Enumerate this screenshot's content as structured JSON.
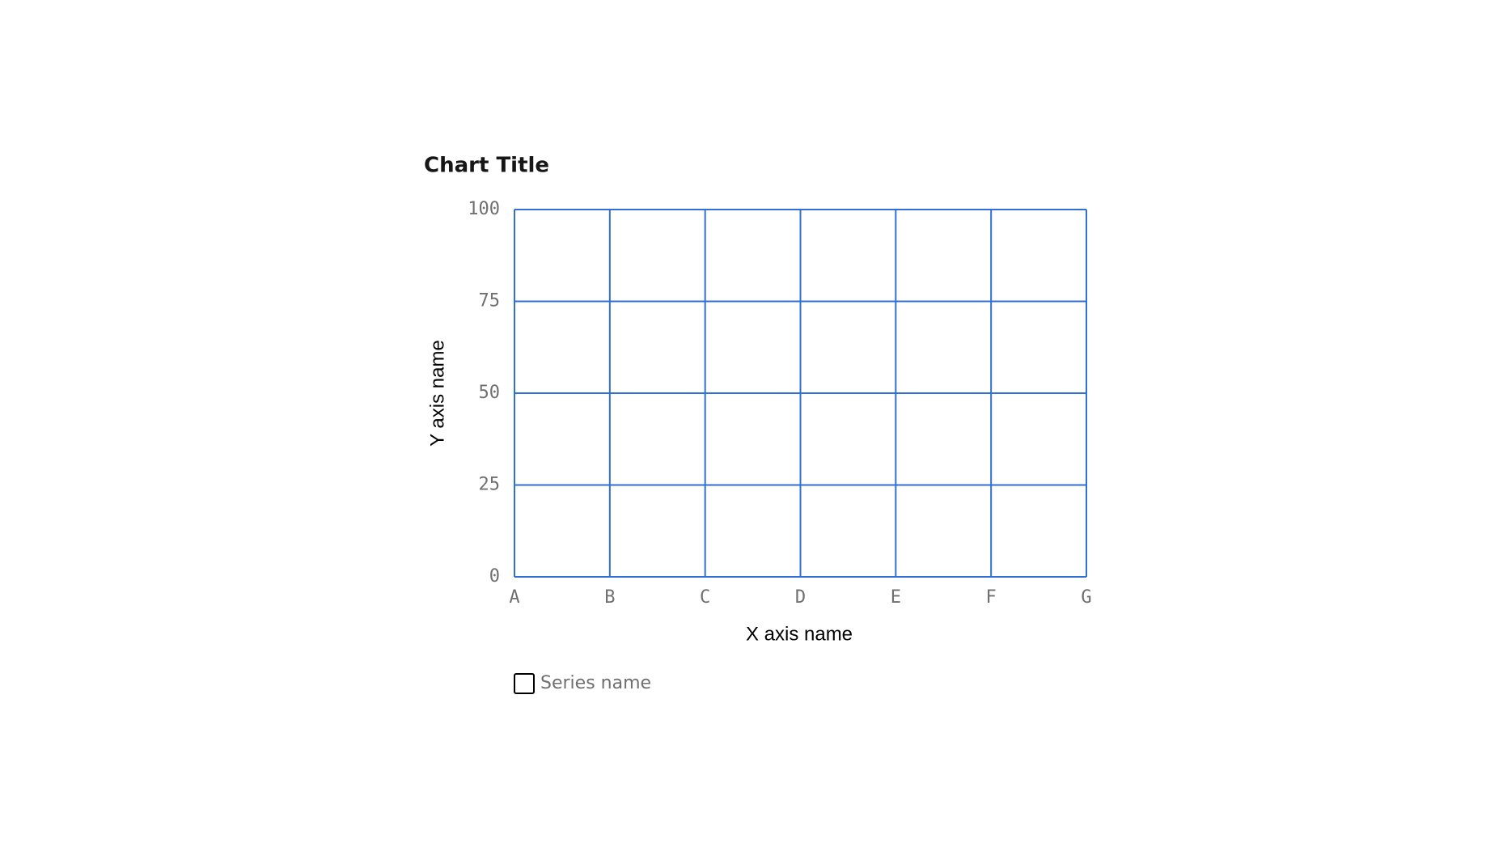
{
  "chart_data": {
    "type": "line",
    "title": "Chart Title",
    "x_label": "X axis name",
    "y_label": "Y axis name",
    "categories": [
      "A",
      "B",
      "C",
      "D",
      "E",
      "F",
      "G"
    ],
    "series": [
      {
        "name": "Series name",
        "color": "#000000",
        "values": [
          null,
          null,
          null,
          null,
          null,
          null,
          null
        ]
      }
    ],
    "ylim": [
      0,
      100
    ],
    "yticks": [
      0,
      25,
      50,
      75,
      100
    ],
    "grid": true,
    "grid_color": "#2f6fd6",
    "legend": "bottom"
  }
}
